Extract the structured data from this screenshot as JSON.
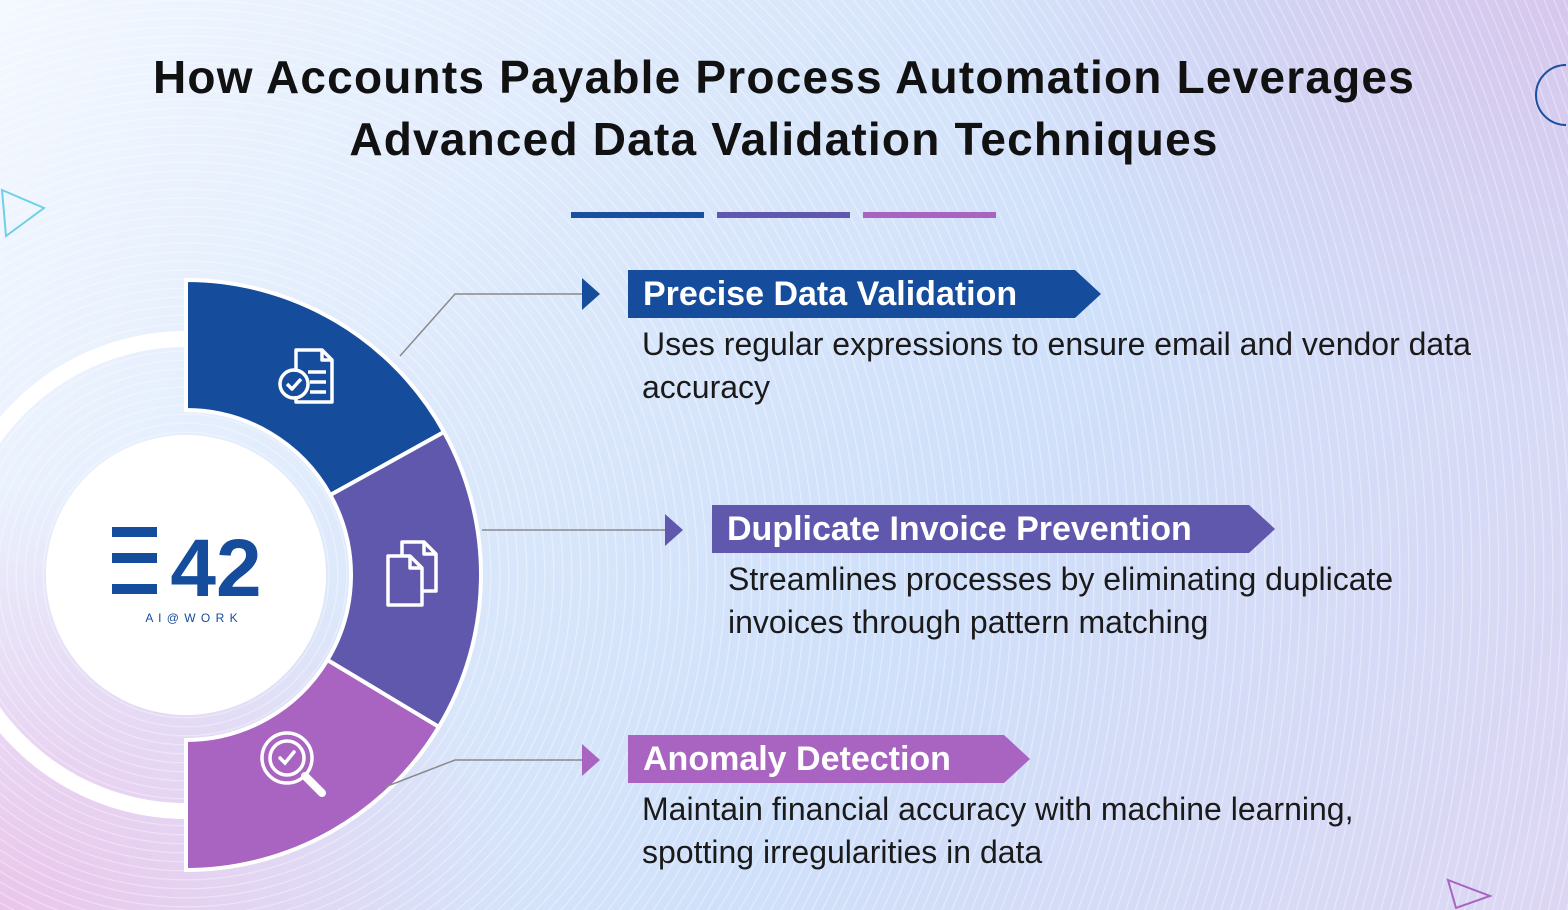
{
  "title": {
    "line1": "How Accounts Payable Process Automation Leverages",
    "line2": "Advanced Data Validation Techniques"
  },
  "divider_colors": [
    "#1a4e9e",
    "#5f58ad",
    "#a864c0"
  ],
  "logo": {
    "mark": "E42",
    "tagline": "A I @ W O R K",
    "color": "#154c9c"
  },
  "items": [
    {
      "title": "Precise Data Validation",
      "description": "Uses regular expressions to ensure email and vendor data accuracy",
      "color": "#154c9c",
      "icon": "document-check-icon"
    },
    {
      "title": "Duplicate Invoice Prevention",
      "description": "Streamlines processes by eliminating duplicate invoices through pattern matching",
      "color": "#5f58ad",
      "icon": "duplicate-documents-icon"
    },
    {
      "title": "Anomaly Detection",
      "description": "Maintain financial accuracy with machine learning, spotting irregularities in data",
      "color": "#a864c0",
      "icon": "magnifier-check-icon"
    }
  ]
}
